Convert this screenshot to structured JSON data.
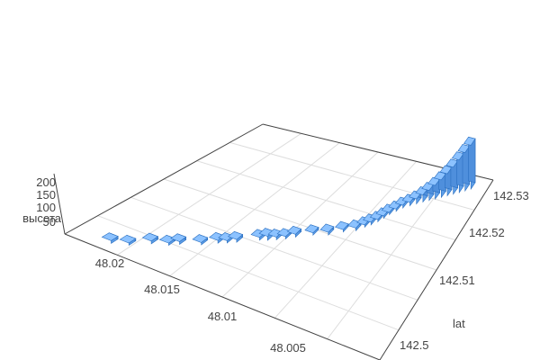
{
  "chart_data": {
    "type": "bar3d",
    "axes": {
      "z": {
        "title": "высота",
        "ticks": [
          "50",
          "100",
          "150",
          "200"
        ],
        "range": [
          0,
          200
        ]
      },
      "x": {
        "title": "",
        "ticks": [
          "48.02",
          "48.015",
          "48.01",
          "48.005"
        ],
        "range": [
          48.0,
          48.024
        ]
      },
      "y": {
        "title": "lat",
        "ticks": [
          "142.5",
          "142.51",
          "142.52",
          "142.53"
        ],
        "range": [
          142.496,
          142.534
        ]
      }
    },
    "bar_color": "#6aaaf5",
    "bar_edge_color": "#2a6fc0",
    "grid": true,
    "points": [
      {
        "x": 48.0215,
        "y": 142.4985,
        "z": 12
      },
      {
        "x": 48.0205,
        "y": 142.4995,
        "z": 10
      },
      {
        "x": 48.0195,
        "y": 142.5015,
        "z": 12
      },
      {
        "x": 48.0185,
        "y": 142.5025,
        "z": 10
      },
      {
        "x": 48.018,
        "y": 142.5035,
        "z": 12
      },
      {
        "x": 48.0168,
        "y": 142.505,
        "z": 10
      },
      {
        "x": 48.016,
        "y": 142.5065,
        "z": 12
      },
      {
        "x": 48.0155,
        "y": 142.5072,
        "z": 10
      },
      {
        "x": 48.015,
        "y": 142.508,
        "z": 12
      },
      {
        "x": 48.0138,
        "y": 142.51,
        "z": 12
      },
      {
        "x": 48.0133,
        "y": 142.5105,
        "z": 18
      },
      {
        "x": 48.0128,
        "y": 142.5112,
        "z": 12
      },
      {
        "x": 48.0123,
        "y": 142.512,
        "z": 10
      },
      {
        "x": 48.0118,
        "y": 142.513,
        "z": 12
      },
      {
        "x": 48.0108,
        "y": 142.5145,
        "z": 10
      },
      {
        "x": 48.0098,
        "y": 142.5155,
        "z": 12
      },
      {
        "x": 48.009,
        "y": 142.517,
        "z": 10
      },
      {
        "x": 48.0082,
        "y": 142.518,
        "z": 12
      },
      {
        "x": 48.0078,
        "y": 142.5192,
        "z": 10
      },
      {
        "x": 48.0075,
        "y": 142.52,
        "z": 12
      },
      {
        "x": 48.0072,
        "y": 142.521,
        "z": 10
      },
      {
        "x": 48.007,
        "y": 142.522,
        "z": 10
      },
      {
        "x": 48.0068,
        "y": 142.523,
        "z": 10
      },
      {
        "x": 48.0065,
        "y": 142.524,
        "z": 10
      },
      {
        "x": 48.0062,
        "y": 142.525,
        "z": 12
      },
      {
        "x": 48.0058,
        "y": 142.5258,
        "z": 15
      },
      {
        "x": 48.0054,
        "y": 142.5265,
        "z": 22
      },
      {
        "x": 48.005,
        "y": 142.5272,
        "z": 32
      },
      {
        "x": 48.0046,
        "y": 142.5278,
        "z": 45
      },
      {
        "x": 48.0042,
        "y": 142.5284,
        "z": 60
      },
      {
        "x": 48.0038,
        "y": 142.529,
        "z": 78
      },
      {
        "x": 48.0034,
        "y": 142.5296,
        "z": 98
      },
      {
        "x": 48.003,
        "y": 142.5302,
        "z": 120
      },
      {
        "x": 48.0026,
        "y": 142.5308,
        "z": 145
      },
      {
        "x": 48.0022,
        "y": 142.5314,
        "z": 170
      },
      {
        "x": 48.0018,
        "y": 142.532,
        "z": 195
      }
    ]
  }
}
